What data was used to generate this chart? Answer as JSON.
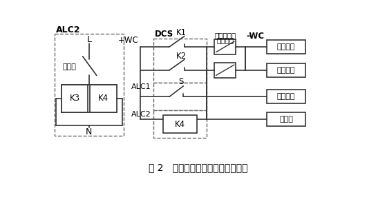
{
  "title": "图 2   改造后主电动机控制原理示意",
  "bg": "#ffffff",
  "lc": "#333333",
  "dc": "#666666",
  "labels": {
    "ALC2_top": "ALC2",
    "L": "L",
    "oil_low": "油压低",
    "K3": "K3",
    "K4_l": "K4",
    "N": "N",
    "DCS": "DCS",
    "pWC": "+WC",
    "mWC": "-WC",
    "K1": "K1",
    "K2": "K2",
    "ALC1": "ALC1",
    "S": "S",
    "ALC2_m": "ALC2",
    "K4_m": "K4",
    "trolley1": "小车断路器",
    "trolley2": "辅助触点",
    "box1": "集中合闸",
    "box2": "集中分闸",
    "box3": "现场急停",
    "box4": "油压低"
  }
}
